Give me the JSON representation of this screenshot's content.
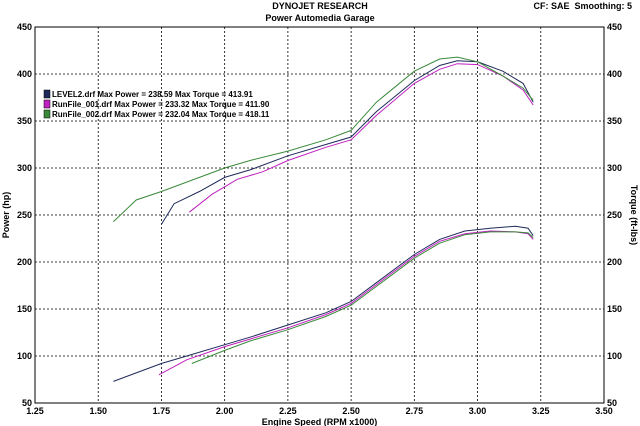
{
  "header": {
    "title": "DYNOJET RESEARCH",
    "subtitle": "Power Automedia Garage",
    "cf": "CF: SAE",
    "smoothing": "Smoothing: 5"
  },
  "chart_data": {
    "type": "line",
    "title": "DYNOJET RESEARCH",
    "subtitle": "Power Automedia Garage",
    "xlabel": "Engine Speed (RPM x1000)",
    "ylabel": "Power (hp)",
    "y2label": "Torque (ft-lbs)",
    "xlim": [
      1.25,
      3.5
    ],
    "ylim": [
      50,
      450
    ],
    "y2lim": [
      50,
      450
    ],
    "grid": true,
    "legend_position": "top-left",
    "x_ticks": [
      "1.25",
      "1.50",
      "1.75",
      "2.00",
      "2.25",
      "2.50",
      "2.75",
      "3.00",
      "3.25",
      "3.50"
    ],
    "y_ticks": [
      "50",
      "100",
      "150",
      "200",
      "250",
      "300",
      "350",
      "400",
      "450"
    ],
    "y2_ticks": [
      "50",
      "100",
      "150",
      "200",
      "250",
      "300",
      "350",
      "400",
      "450"
    ],
    "series": [
      {
        "name": "LEVEL2.drf",
        "legend_text": "LEVEL2.drf Max Power = 238.59     Max Torque = 413.91",
        "color": "#1f2a5a",
        "power": [
          [
            1.56,
            73
          ],
          [
            1.65,
            82
          ],
          [
            1.75,
            92
          ],
          [
            1.85,
            100
          ],
          [
            2.0,
            112
          ],
          [
            2.1,
            120
          ],
          [
            2.25,
            133
          ],
          [
            2.4,
            146
          ],
          [
            2.5,
            158
          ],
          [
            2.6,
            178
          ],
          [
            2.75,
            208
          ],
          [
            2.85,
            224
          ],
          [
            2.95,
            233
          ],
          [
            3.05,
            236
          ],
          [
            3.15,
            238
          ],
          [
            3.2,
            236
          ],
          [
            3.22,
            228
          ]
        ],
        "torque": [
          [
            1.75,
            240
          ],
          [
            1.8,
            262
          ],
          [
            1.9,
            275
          ],
          [
            2.0,
            290
          ],
          [
            2.1,
            298
          ],
          [
            2.25,
            313
          ],
          [
            2.4,
            325
          ],
          [
            2.5,
            333
          ],
          [
            2.6,
            360
          ],
          [
            2.75,
            393
          ],
          [
            2.85,
            409
          ],
          [
            2.92,
            414
          ],
          [
            3.0,
            413
          ],
          [
            3.1,
            403
          ],
          [
            3.18,
            390
          ],
          [
            3.22,
            370
          ]
        ]
      },
      {
        "name": "RunFile_001.drf",
        "legend_text": "RunFile_001.drf Max Power = 233.32     Max Torque = 411.90",
        "color": "#c020c0",
        "power": [
          [
            1.74,
            80
          ],
          [
            1.85,
            96
          ],
          [
            2.0,
            110
          ],
          [
            2.1,
            118
          ],
          [
            2.25,
            130
          ],
          [
            2.4,
            144
          ],
          [
            2.5,
            156
          ],
          [
            2.6,
            176
          ],
          [
            2.75,
            206
          ],
          [
            2.85,
            222
          ],
          [
            2.95,
            230
          ],
          [
            3.05,
            233
          ],
          [
            3.15,
            232
          ],
          [
            3.2,
            230
          ],
          [
            3.22,
            224
          ]
        ],
        "torque": [
          [
            1.86,
            253
          ],
          [
            1.95,
            272
          ],
          [
            2.05,
            288
          ],
          [
            2.15,
            296
          ],
          [
            2.25,
            308
          ],
          [
            2.4,
            322
          ],
          [
            2.5,
            330
          ],
          [
            2.6,
            356
          ],
          [
            2.75,
            390
          ],
          [
            2.85,
            405
          ],
          [
            2.92,
            411
          ],
          [
            3.0,
            410
          ],
          [
            3.1,
            398
          ],
          [
            3.18,
            383
          ],
          [
            3.22,
            367
          ]
        ]
      },
      {
        "name": "RunFile_002.drf",
        "legend_text": "RunFile_002.drf Max Power = 232.04     Max Torque = 418.11",
        "color": "#3a8a3a",
        "power": [
          [
            1.87,
            92
          ],
          [
            2.0,
            106
          ],
          [
            2.1,
            116
          ],
          [
            2.25,
            128
          ],
          [
            2.4,
            142
          ],
          [
            2.5,
            154
          ],
          [
            2.6,
            174
          ],
          [
            2.75,
            204
          ],
          [
            2.85,
            220
          ],
          [
            2.95,
            229
          ],
          [
            3.05,
            232
          ],
          [
            3.15,
            232
          ],
          [
            3.2,
            231
          ],
          [
            3.22,
            226
          ]
        ],
        "torque": [
          [
            1.56,
            243
          ],
          [
            1.65,
            266
          ],
          [
            1.75,
            275
          ],
          [
            1.9,
            290
          ],
          [
            2.0,
            300
          ],
          [
            2.1,
            308
          ],
          [
            2.25,
            318
          ],
          [
            2.4,
            330
          ],
          [
            2.5,
            340
          ],
          [
            2.6,
            370
          ],
          [
            2.75,
            403
          ],
          [
            2.85,
            416
          ],
          [
            2.92,
            418
          ],
          [
            3.0,
            413
          ],
          [
            3.1,
            398
          ],
          [
            3.18,
            385
          ],
          [
            3.22,
            372
          ]
        ]
      }
    ]
  }
}
